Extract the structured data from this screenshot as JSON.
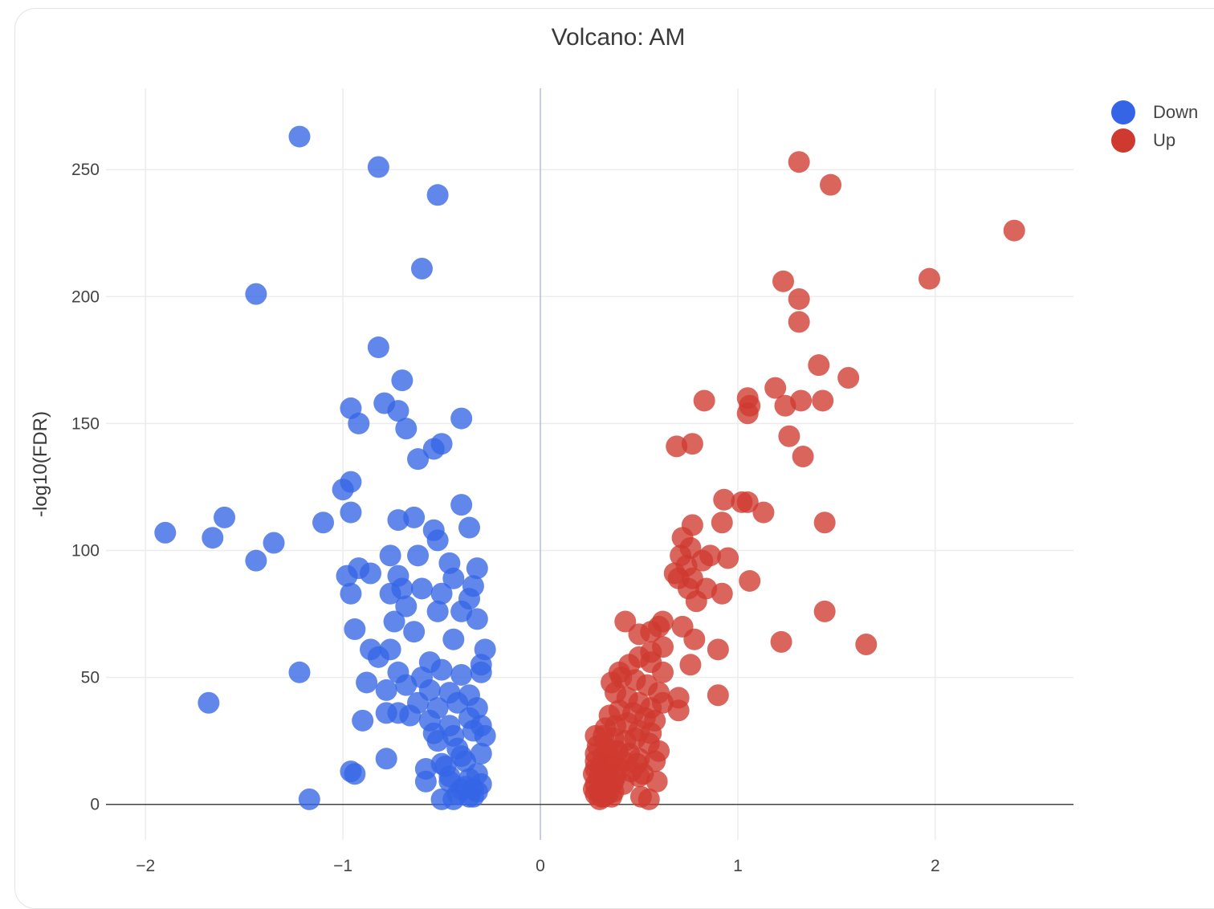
{
  "colors": {
    "down": "#3565e6",
    "up": "#cf3a30",
    "grid": "#ececec",
    "zeroline_x": "#b8bccd",
    "zeroline_y": "#444444"
  },
  "legend": {
    "items": [
      {
        "label": "Down",
        "color": "#3565e6"
      },
      {
        "label": "Up",
        "color": "#cf3a30"
      }
    ]
  },
  "chart_data": {
    "type": "scatter",
    "title": "Volcano: AM",
    "xlabel": "",
    "ylabel": "-log10(FDR)",
    "xlim": [
      -2.2,
      2.7
    ],
    "ylim": [
      -14,
      282
    ],
    "xticks": [
      -2,
      -1,
      0,
      1,
      2
    ],
    "xtick_labels": [
      "−2",
      "−1",
      "0",
      "1",
      "2"
    ],
    "yticks": [
      0,
      50,
      100,
      150,
      200,
      250
    ],
    "grid": true,
    "legend_position": "top-right",
    "series": [
      {
        "name": "Down",
        "color": "#3565e6",
        "x": [
          -1.22,
          -0.82,
          -0.52,
          -0.6,
          -1.44,
          -0.82,
          -0.7,
          -0.96,
          -0.79,
          -0.72,
          -0.92,
          -0.4,
          -0.68,
          -0.54,
          -0.62,
          -0.5,
          -0.96,
          -1.0,
          -0.4,
          -0.96,
          -1.6,
          -1.9,
          -1.66,
          -1.1,
          -0.72,
          -0.64,
          -0.54,
          -0.52,
          -0.36,
          -1.35,
          -1.44,
          -0.76,
          -0.62,
          -0.46,
          -0.32,
          -0.92,
          -0.98,
          -0.86,
          -0.72,
          -0.96,
          -0.76,
          -0.7,
          -0.6,
          -0.5,
          -0.34,
          -0.36,
          -0.44,
          -0.68,
          -0.52,
          -0.74,
          -0.94,
          -0.4,
          -0.32,
          -0.76,
          -0.64,
          -0.44,
          -0.28,
          -0.86,
          -1.22,
          -0.82,
          -0.56,
          -0.3,
          -1.68,
          -0.72,
          -0.6,
          -0.5,
          -0.4,
          -0.3,
          -0.88,
          -0.78,
          -0.68,
          -0.56,
          -0.46,
          -0.36,
          -0.9,
          -0.72,
          -0.62,
          -0.52,
          -0.42,
          -0.32,
          -0.78,
          -0.66,
          -0.56,
          -0.46,
          -0.36,
          -0.3,
          -0.96,
          -0.94,
          -0.54,
          -0.44,
          -0.34,
          -0.28,
          -0.78,
          -0.52,
          -0.42,
          -1.17,
          -0.5,
          -0.4,
          -0.3,
          -0.58,
          -0.48,
          -0.38,
          -0.32,
          -0.58,
          -0.46,
          -0.36,
          -0.3,
          -0.5,
          -0.4,
          -0.34,
          -0.42,
          -0.36,
          -0.46,
          -0.38,
          -0.32,
          -0.44,
          -0.34
        ],
        "y": [
          263,
          251,
          240,
          211,
          201,
          180,
          167,
          156,
          158,
          155,
          150,
          152,
          148,
          140,
          136,
          142,
          127,
          124,
          118,
          115,
          113,
          107,
          105,
          111,
          112,
          113,
          108,
          104,
          109,
          103,
          96,
          98,
          98,
          95,
          93,
          93,
          90,
          91,
          90,
          83,
          83,
          85,
          85,
          83,
          86,
          81,
          89,
          78,
          76,
          72,
          69,
          76,
          73,
          61,
          68,
          65,
          61,
          61,
          52,
          58,
          56,
          55,
          40,
          52,
          50,
          53,
          51,
          52,
          48,
          45,
          47,
          45,
          44,
          43,
          33,
          36,
          40,
          38,
          40,
          38,
          36,
          35,
          33,
          31,
          34,
          31,
          13,
          12,
          28,
          27,
          29,
          27,
          18,
          25,
          22,
          2,
          16,
          19,
          20,
          14,
          15,
          17,
          12,
          9,
          11,
          10,
          8,
          2,
          6,
          6,
          4,
          3,
          9,
          7,
          5,
          2,
          3
        ]
      },
      {
        "name": "Up",
        "color": "#cf3a30",
        "x": [
          1.31,
          1.47,
          2.4,
          1.97,
          1.23,
          1.31,
          1.31,
          1.41,
          1.56,
          1.05,
          1.19,
          1.43,
          1.32,
          0.83,
          1.24,
          1.06,
          1.05,
          1.26,
          0.77,
          0.69,
          1.33,
          0.93,
          1.02,
          1.05,
          1.13,
          0.77,
          0.92,
          1.44,
          0.72,
          0.76,
          0.86,
          0.71,
          0.95,
          0.82,
          0.74,
          0.68,
          0.7,
          0.77,
          1.06,
          0.84,
          0.75,
          0.92,
          0.62,
          0.79,
          1.44,
          0.43,
          1.65,
          1.22,
          0.5,
          0.6,
          0.56,
          0.72,
          0.78,
          0.9,
          0.62,
          0.56,
          0.76,
          0.4,
          0.45,
          0.5,
          0.56,
          0.62,
          0.36,
          0.41,
          0.48,
          0.54,
          0.6,
          0.9,
          0.7,
          0.38,
          0.44,
          0.5,
          0.56,
          0.62,
          0.35,
          0.4,
          0.47,
          0.53,
          0.58,
          0.7,
          0.33,
          0.38,
          0.44,
          0.5,
          0.56,
          0.28,
          0.32,
          0.37,
          0.43,
          0.48,
          0.55,
          0.6,
          0.29,
          0.34,
          0.39,
          0.45,
          0.5,
          0.58,
          0.28,
          0.32,
          0.37,
          0.42,
          0.49,
          0.28,
          0.31,
          0.35,
          0.4,
          0.46,
          0.52,
          0.28,
          0.31,
          0.34,
          0.38,
          0.59,
          0.27,
          0.3,
          0.33,
          0.37,
          0.42,
          0.5,
          0.28,
          0.31,
          0.35,
          0.27,
          0.3,
          0.33,
          0.37,
          0.28,
          0.32,
          0.36,
          0.3,
          0.34,
          0.31,
          0.55,
          0.51,
          0.31
        ],
        "y": [
          253,
          244,
          226,
          207,
          206,
          199,
          190,
          173,
          168,
          160,
          164,
          159,
          159,
          159,
          157,
          157,
          154,
          145,
          142,
          141,
          137,
          120,
          119,
          119,
          115,
          110,
          111,
          111,
          105,
          101,
          98,
          98,
          97,
          96,
          94,
          91,
          89,
          89,
          88,
          85,
          85,
          83,
          72,
          80,
          76,
          72,
          63,
          64,
          67,
          70,
          68,
          70,
          65,
          61,
          62,
          60,
          55,
          52,
          55,
          58,
          56,
          52,
          48,
          50,
          49,
          47,
          44,
          43,
          42,
          44,
          42,
          40,
          38,
          40,
          35,
          37,
          36,
          34,
          33,
          37,
          30,
          31,
          32,
          29,
          28,
          27,
          27,
          26,
          25,
          26,
          24,
          21,
          23,
          22,
          21,
          20,
          18,
          17,
          20,
          19,
          18,
          17,
          16,
          17,
          16,
          15,
          14,
          13,
          12,
          14,
          13,
          12,
          11,
          9,
          12,
          11,
          10,
          9,
          8,
          11,
          8,
          7,
          6,
          6,
          5,
          4,
          5,
          4,
          3,
          3,
          2,
          4,
          3,
          2,
          3,
          5
        ]
      }
    ]
  }
}
